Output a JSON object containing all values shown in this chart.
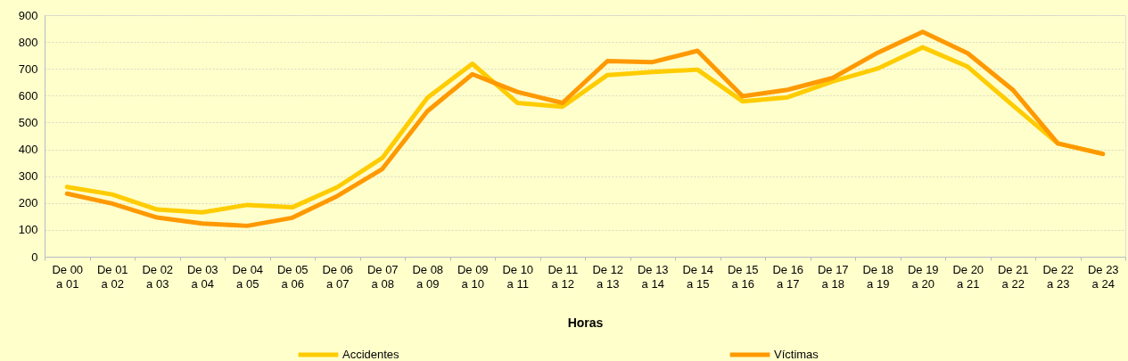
{
  "chart_data": {
    "type": "line",
    "xlabel": "Horas",
    "categories": [
      "De 00\na 01",
      "De 01\na 02",
      "De 02\na 03",
      "De 03\na 04",
      "De 04\na 05",
      "De 05\na 06",
      "De 06\na 07",
      "De 07\na 08",
      "De 08\na 09",
      "De 09\na 10",
      "De 10\na 11",
      "De 11\na 12",
      "De 12\na 13",
      "De 13\na 14",
      "De 14\na 15",
      "De 15\na 16",
      "De 16\na 17",
      "De 17\na 18",
      "De 18\na 19",
      "De 19\na 20",
      "De 20\na 21",
      "De 21\na 22",
      "De 22\na 23",
      "De 23\na 24"
    ],
    "series": [
      {
        "name": "Accidentes",
        "color": "#ffcc00",
        "values": [
          260,
          232,
          176,
          165,
          193,
          184,
          259,
          368,
          592,
          719,
          573,
          559,
          677,
          688,
          697,
          579,
          594,
          653,
          701,
          780,
          708,
          564,
          422,
          383
        ]
      },
      {
        "name": "Víctimas",
        "color": "#ff9900",
        "values": [
          235,
          198,
          146,
          124,
          115,
          145,
          226,
          327,
          542,
          680,
          614,
          573,
          729,
          725,
          767,
          598,
          622,
          666,
          760,
          838,
          758,
          622,
          422,
          383
        ]
      }
    ],
    "ylim": [
      0,
      900
    ],
    "yticks": [
      0,
      100,
      200,
      300,
      400,
      500,
      600,
      700,
      800,
      900
    ],
    "grid": "y",
    "legend": "bottom",
    "line_style": "solid"
  }
}
